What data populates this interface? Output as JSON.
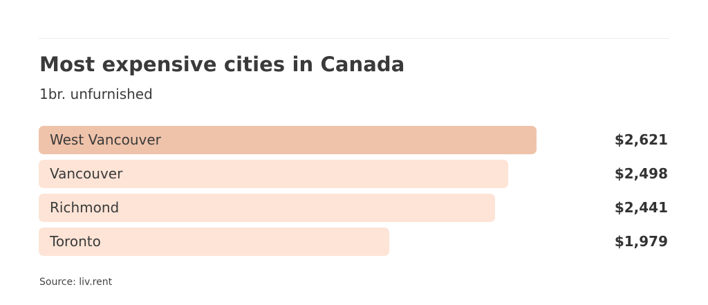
{
  "chart_data": {
    "type": "bar",
    "orientation": "horizontal",
    "title": "Most expensive cities in Canada",
    "subtitle": "1br. unfurnished",
    "categories": [
      "West Vancouver",
      "Vancouver",
      "Richmond",
      "Toronto"
    ],
    "values": [
      2621,
      2498,
      2441,
      1979
    ],
    "value_labels": [
      "$2,621",
      "$2,498",
      "$2,441",
      "$1,979"
    ],
    "source": "Source: liv.rent",
    "colors": {
      "highlight": "#efc3aa",
      "bar": "#fde4d6"
    },
    "grid": false,
    "legend": "none"
  }
}
